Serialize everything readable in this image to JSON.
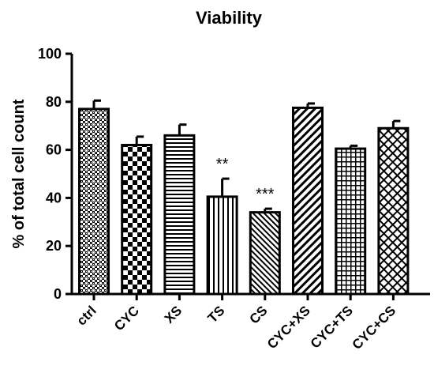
{
  "chart_data": {
    "type": "bar",
    "title": "Viability",
    "xlabel": "",
    "ylabel": "% of total cell count",
    "ylim": [
      0,
      100
    ],
    "yticks": [
      "0",
      "20",
      "40",
      "60",
      "80",
      "100"
    ],
    "categories": [
      "ctrl",
      "CYC",
      "XS",
      "TS",
      "CS",
      "CYC+XS",
      "CYC+TS",
      "CYC+CS"
    ],
    "values": [
      77,
      62,
      66,
      40.5,
      34,
      77.5,
      60.5,
      69
    ],
    "errors": [
      3.5,
      3.5,
      4.5,
      7.5,
      1.5,
      1.8,
      1.2,
      3.0
    ],
    "annotations": [
      "",
      "",
      "",
      "**",
      "***",
      "",
      "",
      ""
    ],
    "patterns": [
      "crosshatch-dense",
      "checkerboard",
      "horizontal-lines",
      "vertical-lines",
      "diagonal-lines",
      "diagonal-lines-wide",
      "grid",
      "diamond-crosshatch"
    ],
    "grid": false,
    "legend": "none",
    "colors": {
      "stroke": "#000000",
      "fill": "#ffffff"
    }
  }
}
